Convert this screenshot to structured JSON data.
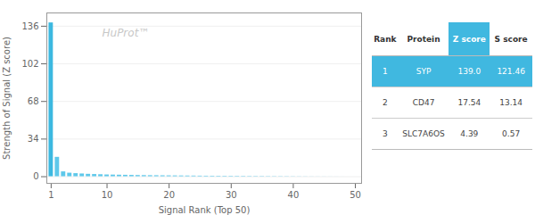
{
  "chart_data": {
    "type": "bar",
    "xlabel": "Signal Rank (Top 50)",
    "ylabel": "Strength of Signal (Z score)",
    "x": [
      1,
      2,
      3,
      4,
      5,
      6,
      7,
      8,
      9,
      10,
      11,
      12,
      13,
      14,
      15,
      16,
      17,
      18,
      19,
      20,
      21,
      22,
      23,
      24,
      25,
      26,
      27,
      28,
      29,
      30,
      31,
      32,
      33,
      34,
      35,
      36,
      37,
      38,
      39,
      40,
      41,
      42,
      43,
      44,
      45,
      46,
      47,
      48,
      49,
      50
    ],
    "values": [
      139.0,
      17.54,
      4.39,
      3.2,
      2.8,
      2.5,
      2.2,
      2.0,
      1.8,
      1.6,
      1.5,
      1.4,
      1.3,
      1.2,
      1.1,
      1.0,
      0.95,
      0.9,
      0.85,
      0.8,
      0.75,
      0.7,
      0.65,
      0.6,
      0.55,
      0.5,
      0.48,
      0.45,
      0.42,
      0.4,
      0.38,
      0.35,
      0.32,
      0.3,
      0.28,
      0.25,
      0.22,
      0.2,
      0.18,
      0.15,
      0.12,
      0.1,
      0.08,
      0.06,
      0.05,
      0.04,
      0.03,
      0.02,
      0.01,
      -0.01
    ],
    "colors": [
      "#3cb8e0",
      "#5ec8ea",
      "#5ec8ea",
      "#5ec8ea",
      "#5ec8ea",
      "#5ec8ea",
      "#5ec8ea",
      "#5ec8ea",
      "#5ec8ea",
      "#5ec8ea",
      "#5ec8ea",
      "#5ec8ea",
      "#5ec8ea",
      "#5ec8ea",
      "#5ec8ea",
      "#5ec8ea",
      "#5ec8ea",
      "#5ec8ea",
      "#5ec8ea",
      "#5ec8ea",
      "#5ec8ea",
      "#5ec8ea",
      "#5ec8ea",
      "#5ec8ea",
      "#5ec8ea",
      "#5ec8ea",
      "#5ec8ea",
      "#5ec8ea",
      "#5ec8ea",
      "#5ec8ea",
      "#5ec8ea",
      "#5ec8ea",
      "#5ec8ea",
      "#5ec8ea",
      "#5ec8ea",
      "#5ec8ea",
      "#5ec8ea",
      "#5ec8ea",
      "#5ec8ea",
      "#5ec8ea",
      "#5ec8ea",
      "#5ec8ea",
      "#5ec8ea",
      "#5ec8ea",
      "#5ec8ea",
      "#5ec8ea",
      "#5ec8ea",
      "#5ec8ea",
      "#5ec8ea",
      "#5ec8ea"
    ],
    "xlim": [
      0.3,
      51
    ],
    "xticks": [
      1,
      10,
      20,
      30,
      40,
      50
    ],
    "ylim": [
      -6,
      148
    ],
    "yticks": [
      0,
      34,
      68,
      102,
      136
    ],
    "grid": true,
    "annotations": [
      "HuProt™"
    ],
    "table": {
      "headers": [
        "Rank",
        "Protein",
        "Z score",
        "S score"
      ],
      "rows": [
        [
          "1",
          "SYP",
          "139.0",
          "121.46"
        ],
        [
          "2",
          "CD47",
          "17.54",
          "13.14"
        ],
        [
          "3",
          "SLC7A6OS",
          "4.39",
          "0.57"
        ]
      ],
      "color": "#40b8e0"
    }
  }
}
